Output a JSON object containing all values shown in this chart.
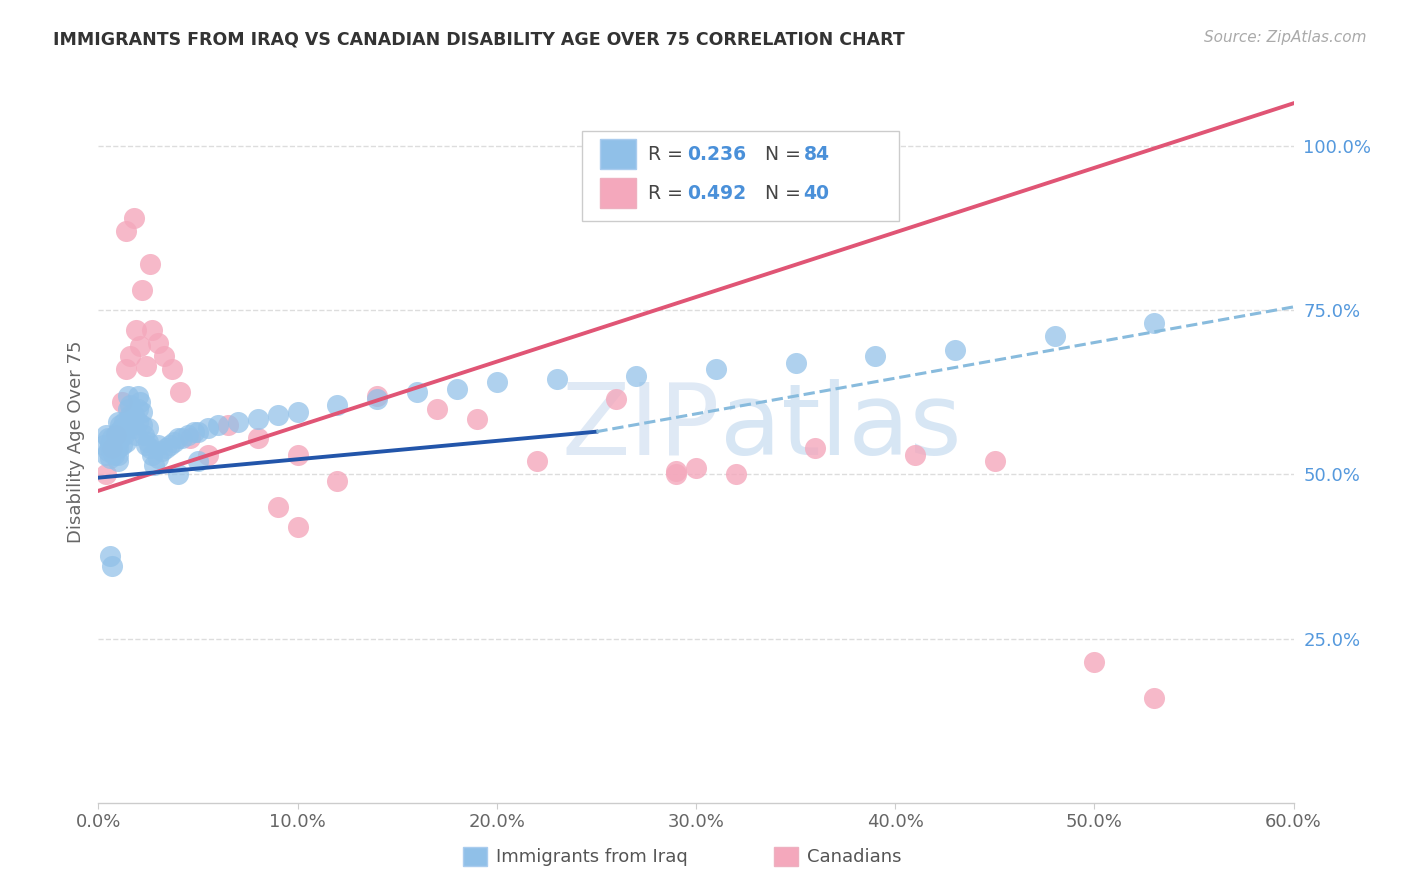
{
  "title": "IMMIGRANTS FROM IRAQ VS CANADIAN DISABILITY AGE OVER 75 CORRELATION CHART",
  "source": "Source: ZipAtlas.com",
  "ylabel": "Disability Age Over 75",
  "legend_label1": "Immigrants from Iraq",
  "legend_label2": "Canadians",
  "legend_R1": "0.236",
  "legend_N1": "84",
  "legend_R2": "0.492",
  "legend_N2": "40",
  "color_blue": "#90C0E8",
  "color_pink": "#F4A8BC",
  "line_blue_solid": "#2255AA",
  "line_blue_dashed": "#88BBDD",
  "line_pink": "#E05575",
  "watermark_zip": "ZIP",
  "watermark_atlas": "atlas",
  "xlim": [
    0.0,
    0.6
  ],
  "ylim": [
    0.0,
    1.1
  ],
  "x_ticks": [
    0.0,
    0.1,
    0.2,
    0.3,
    0.4,
    0.5,
    0.6
  ],
  "x_tick_labels": [
    "0.0%",
    "10.0%",
    "20.0%",
    "30.0%",
    "40.0%",
    "50.0%",
    "60.0%"
  ],
  "y_ticks_right": [
    0.25,
    0.5,
    0.75,
    1.0
  ],
  "y_tick_labels_right": [
    "25.0%",
    "50.0%",
    "75.0%",
    "100.0%"
  ],
  "grid_color": "#DDDDDD",
  "blue_line_solid": [
    [
      0.0,
      0.495
    ],
    [
      0.25,
      0.565
    ]
  ],
  "blue_line_dashed": [
    [
      0.25,
      0.565
    ],
    [
      0.6,
      0.755
    ]
  ],
  "pink_line": [
    [
      0.0,
      0.475
    ],
    [
      0.6,
      1.065
    ]
  ],
  "blue_x": [
    0.003,
    0.004,
    0.004,
    0.005,
    0.005,
    0.006,
    0.006,
    0.007,
    0.007,
    0.008,
    0.008,
    0.008,
    0.009,
    0.009,
    0.01,
    0.01,
    0.01,
    0.01,
    0.01,
    0.01,
    0.011,
    0.011,
    0.012,
    0.012,
    0.013,
    0.013,
    0.014,
    0.014,
    0.015,
    0.015,
    0.015,
    0.016,
    0.016,
    0.017,
    0.018,
    0.018,
    0.019,
    0.02,
    0.02,
    0.02,
    0.021,
    0.022,
    0.022,
    0.023,
    0.024,
    0.025,
    0.025,
    0.026,
    0.027,
    0.028,
    0.03,
    0.03,
    0.032,
    0.034,
    0.036,
    0.038,
    0.04,
    0.042,
    0.045,
    0.048,
    0.05,
    0.055,
    0.06,
    0.07,
    0.08,
    0.09,
    0.1,
    0.12,
    0.14,
    0.16,
    0.18,
    0.2,
    0.23,
    0.27,
    0.31,
    0.35,
    0.39,
    0.43,
    0.48,
    0.53,
    0.04,
    0.05,
    0.006,
    0.007
  ],
  "blue_y": [
    0.545,
    0.56,
    0.53,
    0.535,
    0.555,
    0.545,
    0.525,
    0.555,
    0.535,
    0.55,
    0.545,
    0.53,
    0.56,
    0.54,
    0.58,
    0.565,
    0.55,
    0.54,
    0.53,
    0.52,
    0.575,
    0.555,
    0.57,
    0.545,
    0.58,
    0.56,
    0.57,
    0.55,
    0.62,
    0.6,
    0.58,
    0.605,
    0.59,
    0.575,
    0.59,
    0.57,
    0.56,
    0.62,
    0.6,
    0.58,
    0.61,
    0.595,
    0.575,
    0.56,
    0.545,
    0.57,
    0.55,
    0.54,
    0.53,
    0.515,
    0.545,
    0.525,
    0.535,
    0.54,
    0.545,
    0.55,
    0.555,
    0.555,
    0.56,
    0.565,
    0.565,
    0.57,
    0.575,
    0.58,
    0.585,
    0.59,
    0.595,
    0.605,
    0.615,
    0.625,
    0.63,
    0.64,
    0.645,
    0.65,
    0.66,
    0.67,
    0.68,
    0.69,
    0.71,
    0.73,
    0.5,
    0.52,
    0.375,
    0.36
  ],
  "pink_x": [
    0.004,
    0.007,
    0.009,
    0.012,
    0.014,
    0.016,
    0.019,
    0.021,
    0.024,
    0.027,
    0.03,
    0.033,
    0.037,
    0.041,
    0.046,
    0.055,
    0.065,
    0.08,
    0.1,
    0.12,
    0.14,
    0.17,
    0.19,
    0.22,
    0.26,
    0.29,
    0.32,
    0.36,
    0.41,
    0.45,
    0.5,
    0.53,
    0.014,
    0.018,
    0.022,
    0.026,
    0.09,
    0.1,
    0.29,
    0.3
  ],
  "pink_y": [
    0.5,
    0.54,
    0.56,
    0.61,
    0.66,
    0.68,
    0.72,
    0.695,
    0.665,
    0.72,
    0.7,
    0.68,
    0.66,
    0.625,
    0.555,
    0.53,
    0.575,
    0.555,
    0.53,
    0.49,
    0.62,
    0.6,
    0.585,
    0.52,
    0.615,
    0.505,
    0.5,
    0.54,
    0.53,
    0.52,
    0.215,
    0.16,
    0.87,
    0.89,
    0.78,
    0.82,
    0.45,
    0.42,
    0.5,
    0.51
  ]
}
